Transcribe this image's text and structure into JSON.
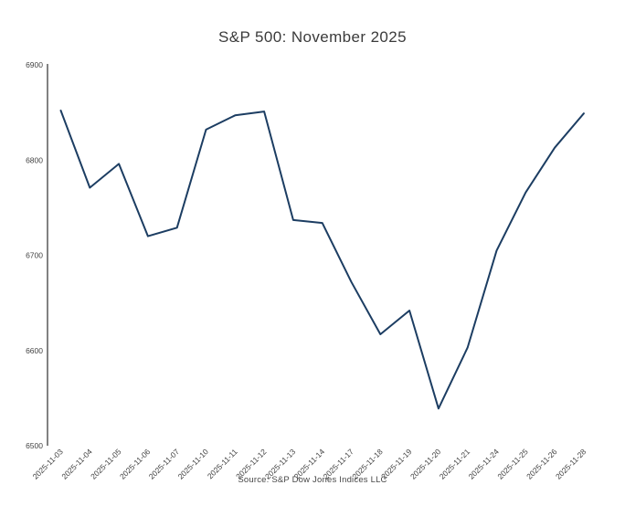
{
  "title": "S&P 500: November 2025",
  "source": "Source: S&P Dow Jones Indices LLC",
  "colors": {
    "background": "#ffffff",
    "line": "#1c3d62",
    "axis": "#2e2e2e",
    "tick_label": "#434343",
    "title": "#3b3b3b",
    "source": "#474747"
  },
  "chart_data": {
    "type": "line",
    "title": "S&P 500: November 2025",
    "xlabel": "",
    "ylabel": "",
    "x": [
      "2025-11-03",
      "2025-11-04",
      "2025-11-05",
      "2025-11-06",
      "2025-11-07",
      "2025-11-10",
      "2025-11-11",
      "2025-11-12",
      "2025-11-13",
      "2025-11-14",
      "2025-11-17",
      "2025-11-18",
      "2025-11-19",
      "2025-11-20",
      "2025-11-21",
      "2025-11-24",
      "2025-11-25",
      "2025-11-26",
      "2025-11-28"
    ],
    "values": [
      6852,
      6771,
      6796,
      6720,
      6729,
      6832,
      6847,
      6851,
      6737,
      6734,
      6672,
      6617,
      6642,
      6539,
      6603,
      6705,
      6766,
      6813,
      6849
    ],
    "ylim": [
      6500,
      6900
    ],
    "yticks": [
      6500,
      6600,
      6700,
      6800,
      6900
    ],
    "grid": false,
    "legend": false,
    "annotation": "Source: S&P Dow Jones Indices LLC"
  }
}
